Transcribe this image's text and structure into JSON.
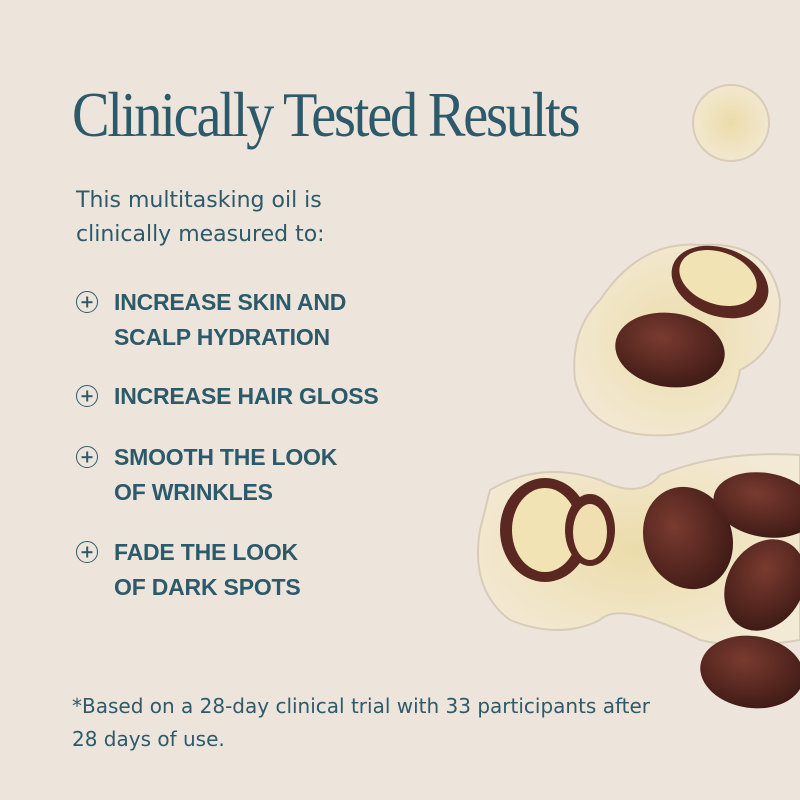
{
  "title": "Clinically Tested Results",
  "intro": "This multitasking oil is clinically measured to:",
  "benefits": [
    {
      "icon": "plus-circle-icon",
      "label": "INCREASE SKIN AND\nSCALP HYDRATION"
    },
    {
      "icon": "plus-circle-icon",
      "label": "INCREASE HAIR GLOSS"
    },
    {
      "icon": "plus-circle-icon",
      "label": "SMOOTH THE LOOK\nOF WRINKLES"
    },
    {
      "icon": "plus-circle-icon",
      "label": "FADE THE LOOK\nOF DARK SPOTS"
    }
  ],
  "footnote": "*Based on a 28-day clinical trial with 33 participants after 28 days of use.",
  "colors": {
    "background": "#ede5dc",
    "text": "#2c5a6a"
  }
}
